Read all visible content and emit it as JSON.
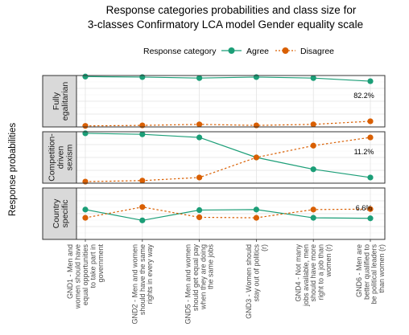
{
  "chart_data": {
    "type": "line",
    "title_lines": [
      "Response categories probabilities and class size for",
      "3-classes Confirmatory LCA model Gender equality scale"
    ],
    "ylabel": "Response probabilities",
    "legend": {
      "title": "Response category",
      "position": "top",
      "items": [
        {
          "label": "Agree",
          "color": "#1b9e77",
          "line": "solid"
        },
        {
          "label": "Disagree",
          "color": "#d95f02",
          "line": "dotted"
        }
      ]
    },
    "categories": [
      [
        "GND1 - Men and",
        "women should have",
        "equal opportunities",
        "to take part in",
        "government"
      ],
      [
        "GND2 - Men and women",
        "should have the same",
        "rights in every way"
      ],
      [
        "GND5 - Men and women",
        "should get equal pay",
        "when they are doing",
        "the same jobs"
      ],
      [
        "GND3 - Women should",
        "stay out of politics",
        "(r)"
      ],
      [
        "GND4 - Not many",
        "jobs available, men",
        "should have more",
        "right to a job than",
        "women (r)"
      ],
      [
        "GND6 - Men are",
        "better qualified to",
        "be political leaders",
        "than women (r)"
      ]
    ],
    "ylim": [
      0,
      1
    ],
    "yticks": [
      "0.25",
      "0.50",
      "0.75"
    ],
    "grid": true,
    "panels": [
      {
        "strip_lines": [
          "Fully",
          "egalitarian"
        ],
        "class_size": "82.2%",
        "series": [
          {
            "name": "Agree",
            "values": [
              0.98,
              0.97,
              0.95,
              0.97,
              0.95,
              0.89
            ]
          },
          {
            "name": "Disagree",
            "values": [
              0.02,
              0.03,
              0.05,
              0.03,
              0.05,
              0.11
            ]
          }
        ]
      },
      {
        "strip_lines": [
          "Competition-",
          "driven",
          "sexism"
        ],
        "class_size": "11.2%",
        "series": [
          {
            "name": "Agree",
            "values": [
              0.97,
              0.95,
              0.89,
              0.5,
              0.27,
              0.11
            ]
          },
          {
            "name": "Disagree",
            "values": [
              0.03,
              0.05,
              0.11,
              0.5,
              0.73,
              0.89
            ]
          }
        ]
      },
      {
        "strip_lines": [
          "Country",
          "specific"
        ],
        "class_size": "6.6%",
        "series": [
          {
            "name": "Agree",
            "values": [
              0.58,
              0.37,
              0.57,
              0.58,
              0.42,
              0.41
            ]
          },
          {
            "name": "Disagree",
            "values": [
              0.42,
              0.63,
              0.43,
              0.42,
              0.58,
              0.59
            ]
          }
        ]
      }
    ]
  }
}
